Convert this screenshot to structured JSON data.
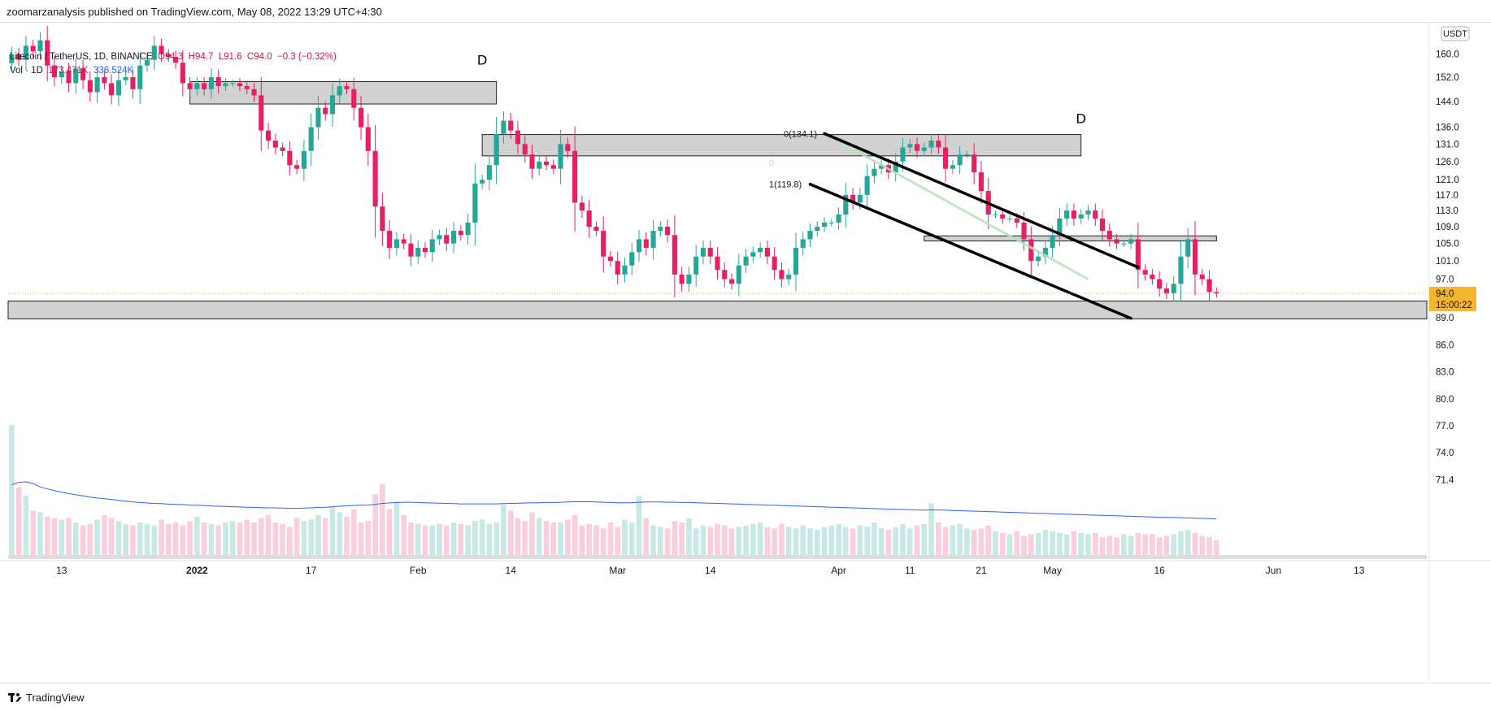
{
  "header": {
    "publish_text": "zoomarzanalysis published on TradingView.com, May 08, 2022 13:29 UTC+4:30"
  },
  "legend": {
    "symbol": "Litecoin / TetherUS, 1D, BINANCE",
    "o": "O94.3",
    "h": "H94.7",
    "l": "L91.6",
    "c": "C94.0",
    "change": "−0.3 (−0.32%)",
    "vol_label": "Vol · 1D",
    "vol_value": "173.471K",
    "vol_ma": "336.524K"
  },
  "footer": {
    "brand": "TradingView"
  },
  "colors": {
    "up": "#26a69a",
    "down": "#e91e63",
    "zone": "#cccccc",
    "price_tag": "#f5b52e",
    "ma": "#2962ff",
    "fib": "#b7e1b9"
  },
  "chart_data": {
    "type": "candlestick",
    "currency_badge": "USDT",
    "ylim": [
      69.5,
      168.5
    ],
    "y_scale": "log",
    "y_ticks": [
      160,
      152,
      144,
      136,
      131,
      126,
      121,
      117,
      113,
      109,
      105,
      101,
      97,
      89,
      86,
      83,
      80,
      77,
      74,
      71.4
    ],
    "y_tick_labels": [
      "160.0",
      "152.0",
      "144.0",
      "136.0",
      "131.0",
      "126.0",
      "121.0",
      "117.0",
      "113.0",
      "109.0",
      "105.0",
      "101.0",
      "97.0",
      "89.0",
      "86.0",
      "83.0",
      "80.0",
      "77.0",
      "74.0",
      "71.4"
    ],
    "x_start_date": "2021-12-06",
    "x_end_date": "2022-06-23",
    "x_ticks": [
      {
        "date": "2021-12-13",
        "label": "13"
      },
      {
        "date": "2022-01-01",
        "label": "2022"
      },
      {
        "date": "2022-01-17",
        "label": "17"
      },
      {
        "date": "2022-02-01",
        "label": "Feb"
      },
      {
        "date": "2022-02-14",
        "label": "14"
      },
      {
        "date": "2022-03-01",
        "label": "Mar"
      },
      {
        "date": "2022-03-14",
        "label": "14"
      },
      {
        "date": "2022-04-01",
        "label": "Apr"
      },
      {
        "date": "2022-04-11",
        "label": "11"
      },
      {
        "date": "2022-04-21",
        "label": "21"
      },
      {
        "date": "2022-05-01",
        "label": "May"
      },
      {
        "date": "2022-05-16",
        "label": "16"
      },
      {
        "date": "2022-06-01",
        "label": "Jun"
      },
      {
        "date": "2022-06-13",
        "label": "13"
      }
    ],
    "last_price": {
      "value": 94.0,
      "label": "94.0",
      "countdown": "15:00:22"
    },
    "closes": [
      160,
      158,
      163,
      161,
      165,
      156,
      152,
      154,
      150,
      155,
      151,
      147,
      152,
      150,
      146,
      151,
      152,
      148,
      156,
      158,
      163,
      160,
      159,
      157,
      150,
      148,
      150,
      148,
      152,
      149,
      150,
      150,
      149,
      148,
      146,
      135,
      132,
      130,
      129,
      125,
      124,
      129,
      136,
      142,
      140,
      146,
      149,
      148,
      142,
      136,
      129,
      114,
      108,
      104,
      106,
      105,
      102,
      104,
      103,
      106,
      107,
      105,
      108,
      107,
      110,
      120,
      121,
      125,
      134,
      138,
      135,
      131,
      128,
      124,
      126,
      125,
      124,
      131,
      129,
      115,
      113,
      109,
      108,
      102,
      101,
      98,
      100,
      103,
      106,
      104,
      108,
      109,
      107,
      98,
      96,
      98,
      102,
      104,
      102,
      99,
      97,
      96,
      100,
      102,
      103,
      104,
      102,
      99,
      97,
      98,
      104,
      106,
      108,
      109,
      110,
      110,
      112,
      117,
      115,
      117,
      122,
      124,
      125,
      123,
      126,
      130,
      131,
      129,
      130,
      132,
      130,
      124,
      125,
      128,
      128,
      123,
      118,
      112,
      112,
      111,
      111,
      110,
      106,
      101,
      102,
      104,
      107,
      111,
      113,
      111,
      112,
      113,
      111,
      108,
      106,
      105,
      105,
      106,
      99,
      98,
      97,
      95,
      94,
      96,
      102,
      106,
      98,
      97,
      94.3,
      94.0
    ],
    "volumes": [
      88,
      46,
      40,
      30,
      29,
      26,
      25,
      24,
      25,
      22,
      20,
      21,
      24,
      27,
      25,
      23,
      21,
      20,
      22,
      21,
      20,
      24,
      21,
      22,
      20,
      23,
      26,
      22,
      21,
      20,
      22,
      23,
      22,
      24,
      22,
      25,
      27,
      22,
      21,
      19,
      25,
      23,
      24,
      27,
      25,
      33,
      29,
      26,
      31,
      22,
      23,
      41,
      48,
      31,
      36,
      27,
      22,
      21,
      20,
      20,
      21,
      20,
      22,
      21,
      20,
      23,
      24,
      21,
      22,
      34,
      30,
      25,
      23,
      29,
      25,
      23,
      22,
      22,
      24,
      27,
      20,
      21,
      20,
      18,
      22,
      19,
      24,
      22,
      40,
      25,
      20,
      19,
      18,
      23,
      22,
      25,
      18,
      20,
      19,
      21,
      20,
      18,
      19,
      20,
      21,
      22,
      19,
      18,
      21,
      19,
      18,
      20,
      18,
      17,
      19,
      20,
      21,
      19,
      18,
      20,
      19,
      22,
      18,
      17,
      19,
      21,
      18,
      20,
      21,
      35,
      22,
      19,
      20,
      21,
      18,
      17,
      18,
      20,
      16,
      15,
      14,
      16,
      13,
      14,
      15,
      17,
      16,
      15,
      14,
      16,
      15,
      14,
      15,
      12,
      13,
      12,
      14,
      13,
      15,
      14,
      14,
      12,
      13,
      14,
      16,
      17,
      15,
      13,
      12,
      10
    ],
    "volume_ma": [
      300,
      310,
      312,
      305,
      290,
      282,
      275,
      268,
      262,
      257,
      252,
      247,
      243,
      240,
      237,
      233,
      229,
      226,
      224,
      222,
      220,
      219,
      217,
      216,
      215,
      213,
      212,
      211,
      209,
      208,
      207,
      206,
      205,
      204,
      203,
      202,
      201,
      201,
      200,
      199,
      199,
      200,
      201,
      203,
      204,
      206,
      208,
      210,
      211,
      212,
      213,
      216,
      220,
      222,
      224,
      225,
      225,
      224,
      223,
      222,
      221,
      220,
      219,
      218,
      218,
      218,
      218,
      218,
      218,
      219,
      220,
      221,
      222,
      223,
      223,
      224,
      224,
      225,
      226,
      227,
      227,
      227,
      226,
      225,
      224,
      223,
      223,
      223,
      225,
      226,
      226,
      226,
      225,
      225,
      224,
      224,
      223,
      222,
      221,
      220,
      219,
      218,
      217,
      216,
      215,
      214,
      213,
      212,
      211,
      210,
      209,
      208,
      207,
      206,
      205,
      204,
      203,
      202,
      201,
      200,
      199,
      198,
      197,
      196,
      195,
      194,
      193,
      192,
      191,
      192,
      192,
      191,
      190,
      189,
      188,
      187,
      186,
      185,
      184,
      183,
      182,
      181,
      180,
      179,
      178,
      177,
      176,
      175,
      174,
      173,
      172,
      171,
      170,
      169,
      168,
      167,
      166,
      165,
      164,
      163,
      162,
      161,
      160,
      160,
      159,
      158,
      157,
      156,
      155,
      154
    ],
    "annotations": [
      {
        "type": "zone",
        "from": "2021-12-31",
        "to": "2022-02-12",
        "high": 150.5,
        "low": 143.2
      },
      {
        "type": "zone",
        "from": "2022-02-10",
        "to": "2022-05-05",
        "high": 133.8,
        "low": 127.6
      },
      {
        "type": "zone",
        "from": "2022-04-13",
        "to": "2022-05-24",
        "high": 106.8,
        "low": 105.6
      },
      {
        "type": "zone",
        "from": "2021-12-06",
        "to": "2022-06-23",
        "high": 92.4,
        "low": 88.8
      },
      {
        "type": "label",
        "date": "2022-02-10",
        "price": 156.3,
        "text": "D"
      },
      {
        "type": "label",
        "date": "2022-05-05",
        "price": 137.3,
        "text": "D"
      },
      {
        "type": "trendline",
        "from": [
          "2022-03-30",
          134.1
        ],
        "to": [
          "2022-05-13",
          99.6
        ]
      },
      {
        "type": "trendline",
        "from": [
          "2022-03-28",
          119.8
        ],
        "to": [
          "2022-05-12",
          88.9
        ]
      },
      {
        "type": "fib",
        "from": [
          "2022-03-30",
          134.1
        ],
        "to": [
          "2022-05-06",
          97.0
        ],
        "level_labels": [
          "0(134.1)",
          "1(119.8)",
          "0."
        ]
      }
    ]
  }
}
